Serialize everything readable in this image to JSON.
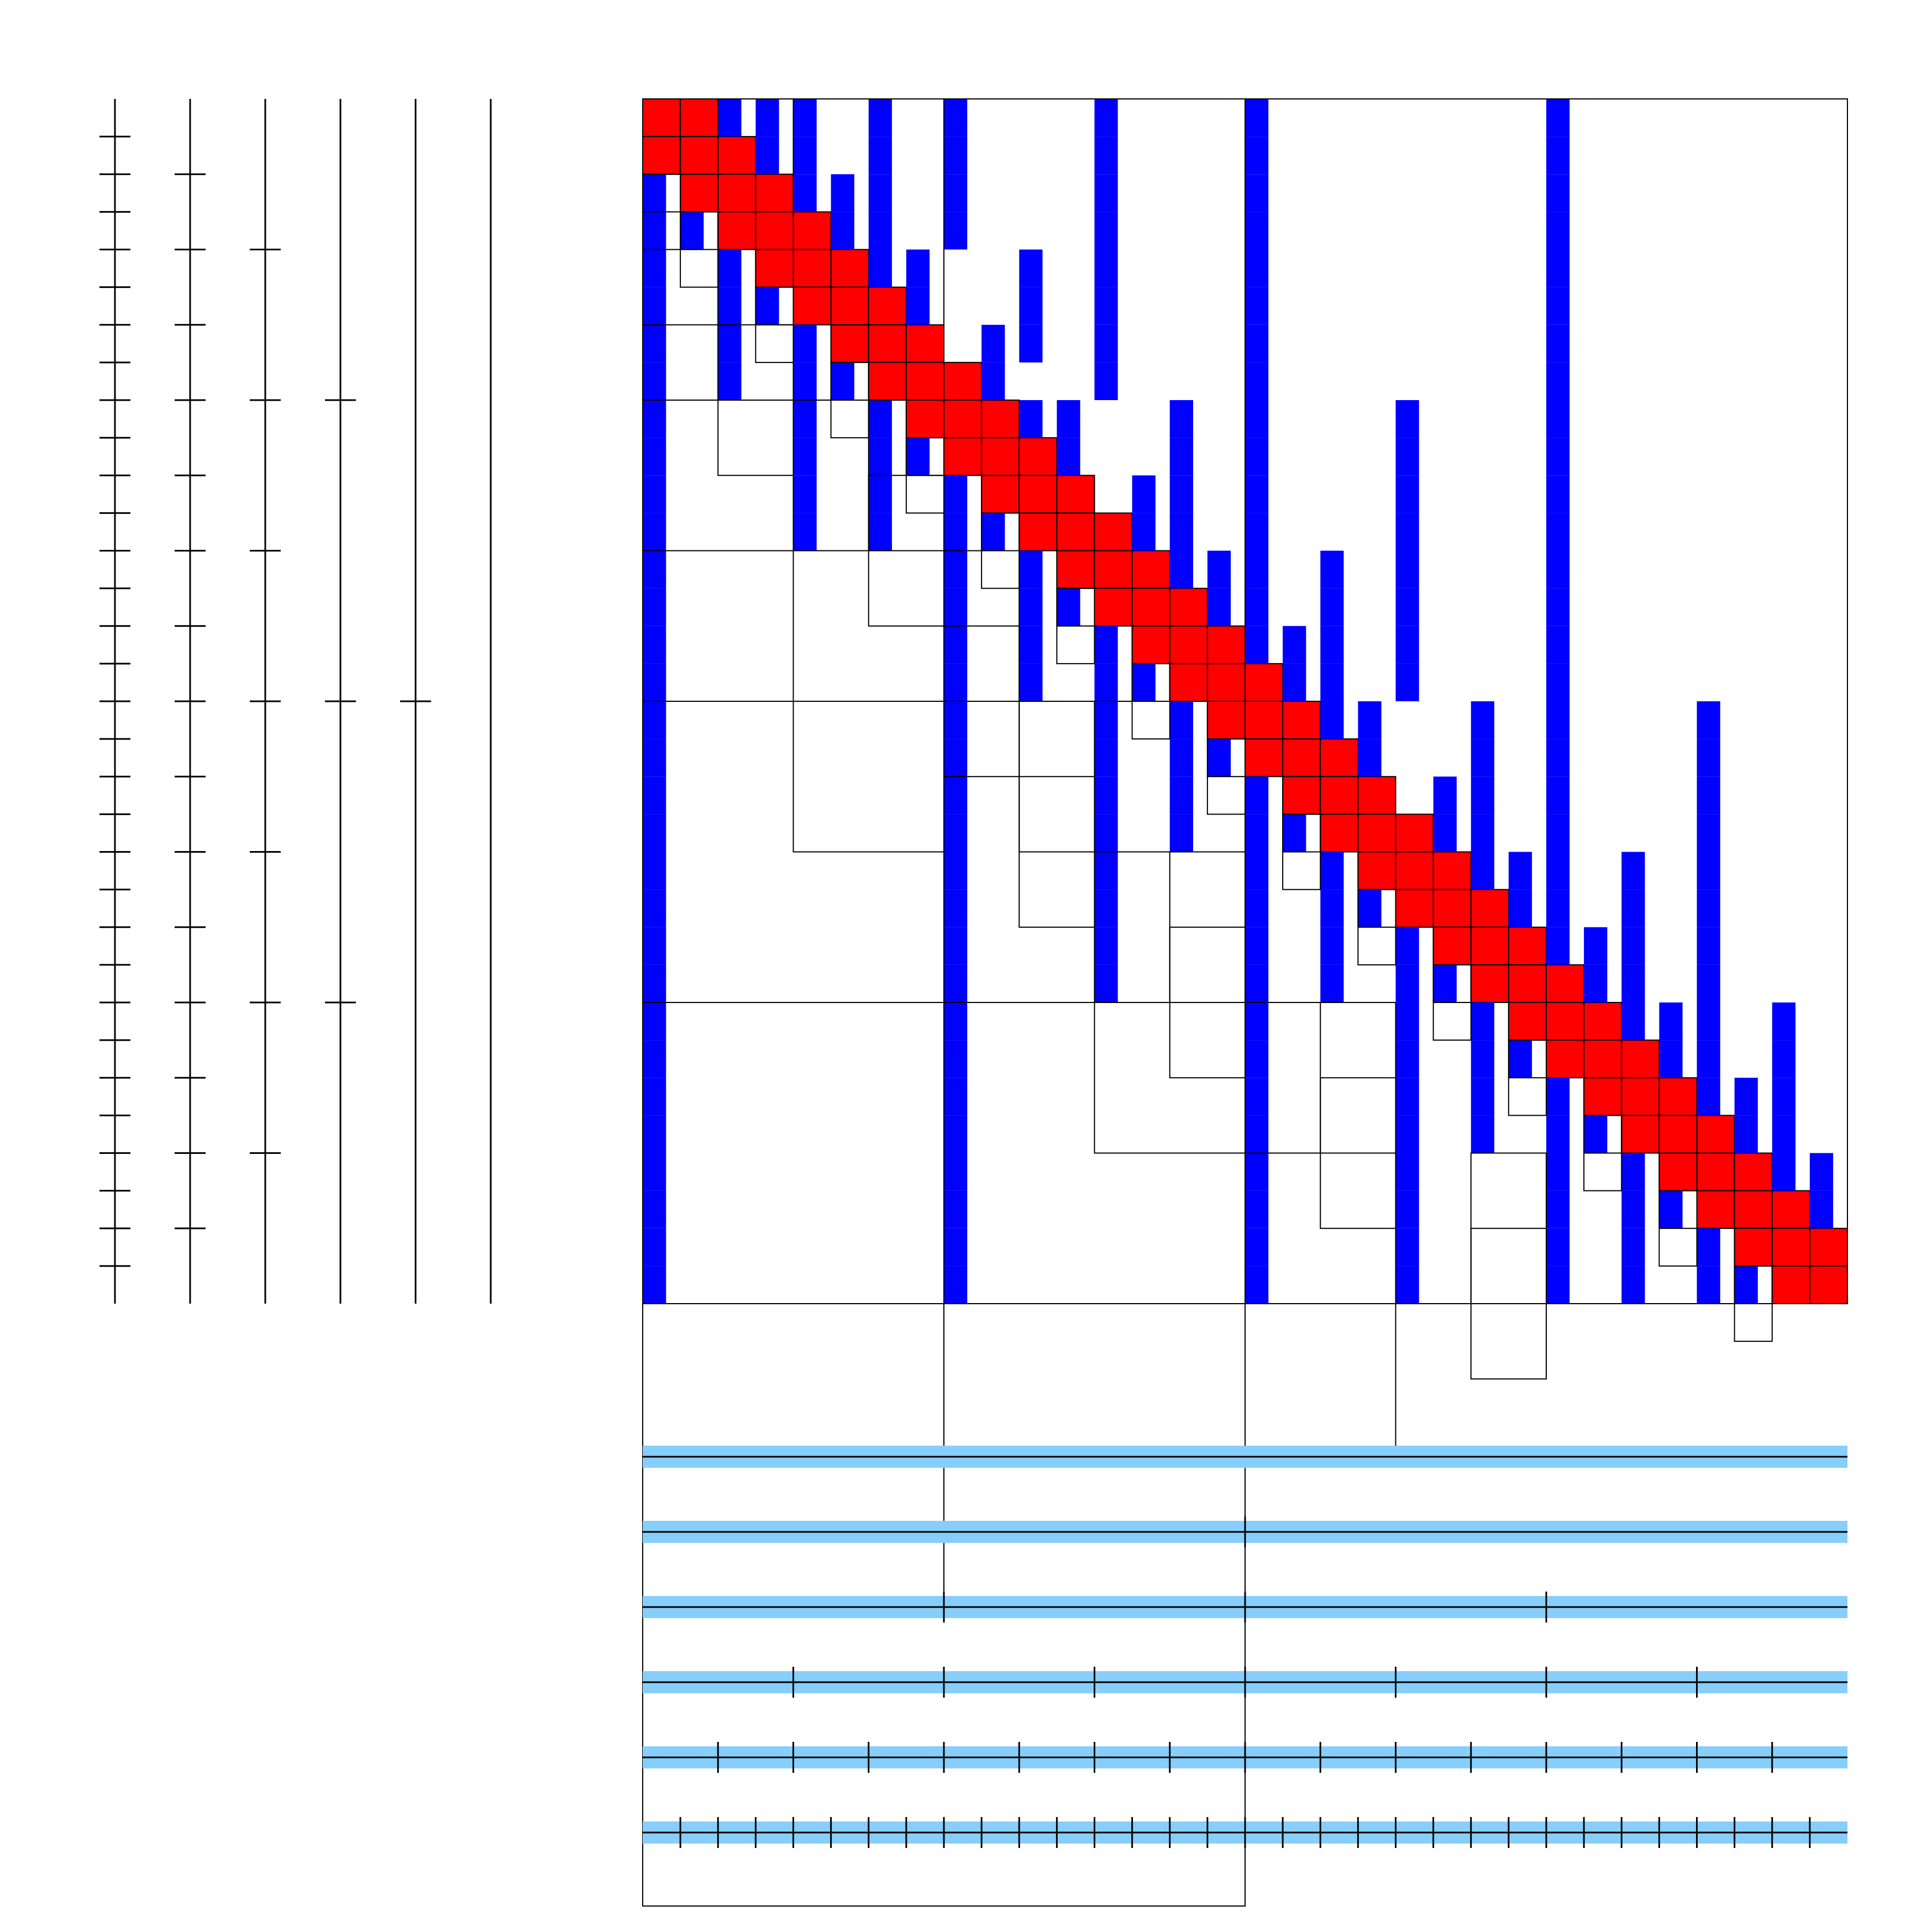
{
  "figure": {
    "type": "hierarchical-matrix-diagram",
    "n": 32,
    "levels": 6,
    "colors": {
      "near_field_block": "#ff0000",
      "low_rank_bar": "#0000ff",
      "grid_line": "#000000",
      "tree_bar": "#87cefa",
      "background": "#ffffff"
    },
    "near_field_bandwidth": 1,
    "low_rank_bars": [
      [
        0,
        2
      ],
      [
        0,
        3
      ],
      [
        0,
        4
      ],
      [
        0,
        6
      ],
      [
        0,
        8
      ],
      [
        0,
        12
      ],
      [
        0,
        16
      ],
      [
        0,
        24
      ],
      [
        1,
        3
      ],
      [
        1,
        4
      ],
      [
        1,
        6
      ],
      [
        1,
        8
      ],
      [
        1,
        12
      ],
      [
        1,
        16
      ],
      [
        1,
        24
      ],
      [
        2,
        0
      ],
      [
        2,
        4
      ],
      [
        2,
        5
      ],
      [
        2,
        6
      ],
      [
        2,
        8
      ],
      [
        2,
        12
      ],
      [
        2,
        16
      ],
      [
        2,
        24
      ],
      [
        3,
        0
      ],
      [
        3,
        1
      ],
      [
        3,
        5
      ],
      [
        3,
        6
      ],
      [
        3,
        8
      ],
      [
        3,
        12
      ],
      [
        3,
        16
      ],
      [
        3,
        24
      ],
      [
        4,
        0
      ],
      [
        4,
        2
      ],
      [
        4,
        6
      ],
      [
        4,
        7
      ],
      [
        4,
        10
      ],
      [
        4,
        12
      ],
      [
        4,
        16
      ],
      [
        4,
        24
      ],
      [
        5,
        0
      ],
      [
        5,
        2
      ],
      [
        5,
        3
      ],
      [
        5,
        7
      ],
      [
        5,
        10
      ],
      [
        5,
        12
      ],
      [
        5,
        16
      ],
      [
        5,
        24
      ],
      [
        6,
        0
      ],
      [
        6,
        2
      ],
      [
        6,
        4
      ],
      [
        6,
        9
      ],
      [
        6,
        10
      ],
      [
        6,
        12
      ],
      [
        6,
        16
      ],
      [
        6,
        24
      ],
      [
        7,
        0
      ],
      [
        7,
        2
      ],
      [
        7,
        4
      ],
      [
        7,
        5
      ],
      [
        7,
        9
      ],
      [
        7,
        12
      ],
      [
        7,
        16
      ],
      [
        7,
        24
      ],
      [
        8,
        0
      ],
      [
        8,
        4
      ],
      [
        8,
        6
      ],
      [
        8,
        10
      ],
      [
        8,
        11
      ],
      [
        8,
        14
      ],
      [
        8,
        16
      ],
      [
        8,
        20
      ],
      [
        8,
        24
      ],
      [
        9,
        0
      ],
      [
        9,
        4
      ],
      [
        9,
        6
      ],
      [
        9,
        7
      ],
      [
        9,
        11
      ],
      [
        9,
        14
      ],
      [
        9,
        16
      ],
      [
        9,
        20
      ],
      [
        9,
        24
      ],
      [
        10,
        0
      ],
      [
        10,
        4
      ],
      [
        10,
        6
      ],
      [
        10,
        8
      ],
      [
        10,
        13
      ],
      [
        10,
        14
      ],
      [
        10,
        16
      ],
      [
        10,
        20
      ],
      [
        10,
        24
      ],
      [
        11,
        0
      ],
      [
        11,
        4
      ],
      [
        11,
        6
      ],
      [
        11,
        8
      ],
      [
        11,
        9
      ],
      [
        11,
        13
      ],
      [
        11,
        14
      ],
      [
        11,
        16
      ],
      [
        11,
        20
      ],
      [
        11,
        24
      ],
      [
        12,
        0
      ],
      [
        12,
        8
      ],
      [
        12,
        10
      ],
      [
        12,
        14
      ],
      [
        12,
        15
      ],
      [
        12,
        16
      ],
      [
        12,
        18
      ],
      [
        12,
        20
      ],
      [
        12,
        24
      ],
      [
        13,
        0
      ],
      [
        13,
        8
      ],
      [
        13,
        10
      ],
      [
        13,
        11
      ],
      [
        13,
        15
      ],
      [
        13,
        16
      ],
      [
        13,
        18
      ],
      [
        13,
        20
      ],
      [
        13,
        24
      ],
      [
        14,
        0
      ],
      [
        14,
        8
      ],
      [
        14,
        10
      ],
      [
        14,
        12
      ],
      [
        14,
        16
      ],
      [
        14,
        17
      ],
      [
        14,
        18
      ],
      [
        14,
        20
      ],
      [
        14,
        24
      ],
      [
        15,
        0
      ],
      [
        15,
        8
      ],
      [
        15,
        10
      ],
      [
        15,
        12
      ],
      [
        15,
        13
      ],
      [
        15,
        17
      ],
      [
        15,
        18
      ],
      [
        15,
        20
      ],
      [
        15,
        24
      ],
      [
        16,
        0
      ],
      [
        16,
        8
      ],
      [
        16,
        12
      ],
      [
        16,
        14
      ],
      [
        16,
        18
      ],
      [
        16,
        19
      ],
      [
        16,
        22
      ],
      [
        16,
        24
      ],
      [
        16,
        28
      ],
      [
        17,
        0
      ],
      [
        17,
        8
      ],
      [
        17,
        12
      ],
      [
        17,
        14
      ],
      [
        17,
        15
      ],
      [
        17,
        19
      ],
      [
        17,
        22
      ],
      [
        17,
        24
      ],
      [
        17,
        28
      ],
      [
        18,
        0
      ],
      [
        18,
        8
      ],
      [
        18,
        12
      ],
      [
        18,
        14
      ],
      [
        18,
        16
      ],
      [
        18,
        21
      ],
      [
        18,
        22
      ],
      [
        18,
        24
      ],
      [
        18,
        28
      ],
      [
        19,
        0
      ],
      [
        19,
        8
      ],
      [
        19,
        12
      ],
      [
        19,
        14
      ],
      [
        19,
        16
      ],
      [
        19,
        17
      ],
      [
        19,
        21
      ],
      [
        19,
        22
      ],
      [
        19,
        24
      ],
      [
        19,
        28
      ],
      [
        20,
        0
      ],
      [
        20,
        8
      ],
      [
        20,
        12
      ],
      [
        20,
        16
      ],
      [
        20,
        18
      ],
      [
        20,
        22
      ],
      [
        20,
        23
      ],
      [
        20,
        24
      ],
      [
        20,
        26
      ],
      [
        20,
        28
      ],
      [
        21,
        0
      ],
      [
        21,
        8
      ],
      [
        21,
        12
      ],
      [
        21,
        16
      ],
      [
        21,
        18
      ],
      [
        21,
        19
      ],
      [
        21,
        23
      ],
      [
        21,
        24
      ],
      [
        21,
        26
      ],
      [
        21,
        28
      ],
      [
        22,
        0
      ],
      [
        22,
        8
      ],
      [
        22,
        12
      ],
      [
        22,
        16
      ],
      [
        22,
        18
      ],
      [
        22,
        20
      ],
      [
        22,
        24
      ],
      [
        22,
        25
      ],
      [
        22,
        26
      ],
      [
        22,
        28
      ],
      [
        23,
        0
      ],
      [
        23,
        8
      ],
      [
        23,
        12
      ],
      [
        23,
        16
      ],
      [
        23,
        18
      ],
      [
        23,
        20
      ],
      [
        23,
        21
      ],
      [
        23,
        25
      ],
      [
        23,
        26
      ],
      [
        23,
        28
      ],
      [
        24,
        0
      ],
      [
        24,
        8
      ],
      [
        24,
        16
      ],
      [
        24,
        20
      ],
      [
        24,
        22
      ],
      [
        24,
        26
      ],
      [
        24,
        27
      ],
      [
        24,
        28
      ],
      [
        24,
        30
      ],
      [
        25,
        0
      ],
      [
        25,
        8
      ],
      [
        25,
        16
      ],
      [
        25,
        20
      ],
      [
        25,
        22
      ],
      [
        25,
        23
      ],
      [
        25,
        27
      ],
      [
        25,
        28
      ],
      [
        25,
        30
      ],
      [
        26,
        0
      ],
      [
        26,
        8
      ],
      [
        26,
        16
      ],
      [
        26,
        20
      ],
      [
        26,
        22
      ],
      [
        26,
        24
      ],
      [
        26,
        28
      ],
      [
        26,
        29
      ],
      [
        26,
        30
      ],
      [
        27,
        0
      ],
      [
        27,
        8
      ],
      [
        27,
        16
      ],
      [
        27,
        20
      ],
      [
        27,
        22
      ],
      [
        27,
        24
      ],
      [
        27,
        25
      ],
      [
        27,
        29
      ],
      [
        27,
        30
      ],
      [
        28,
        0
      ],
      [
        28,
        8
      ],
      [
        28,
        16
      ],
      [
        28,
        20
      ],
      [
        28,
        24
      ],
      [
        28,
        26
      ],
      [
        28,
        30
      ],
      [
        28,
        31
      ],
      [
        29,
        0
      ],
      [
        29,
        8
      ],
      [
        29,
        16
      ],
      [
        29,
        20
      ],
      [
        29,
        24
      ],
      [
        29,
        26
      ],
      [
        29,
        27
      ],
      [
        29,
        31
      ],
      [
        30,
        0
      ],
      [
        30,
        8
      ],
      [
        30,
        16
      ],
      [
        30,
        20
      ],
      [
        30,
        24
      ],
      [
        30,
        26
      ],
      [
        30,
        28
      ],
      [
        31,
        0
      ],
      [
        31,
        8
      ],
      [
        31,
        16
      ],
      [
        31,
        20
      ],
      [
        31,
        24
      ],
      [
        31,
        26
      ],
      [
        31,
        28
      ],
      [
        31,
        29
      ]
    ],
    "grid_rects": [
      [
        0,
        0,
        16,
        32
      ],
      [
        16,
        0,
        16,
        32
      ],
      [
        0,
        0,
        8,
        16
      ],
      [
        8,
        0,
        8,
        16
      ],
      [
        16,
        8,
        8,
        16
      ],
      [
        24,
        8,
        8,
        16
      ],
      [
        0,
        0,
        4,
        8
      ],
      [
        4,
        0,
        4,
        8
      ],
      [
        8,
        4,
        4,
        8
      ],
      [
        12,
        4,
        4,
        8
      ],
      [
        16,
        12,
        4,
        8
      ],
      [
        20,
        12,
        4,
        8
      ],
      [
        24,
        16,
        4,
        8
      ],
      [
        28,
        16,
        4,
        8
      ],
      [
        0,
        0,
        2,
        4
      ],
      [
        2,
        0,
        2,
        4
      ],
      [
        4,
        2,
        2,
        4
      ],
      [
        6,
        2,
        2,
        4
      ],
      [
        8,
        6,
        2,
        4
      ],
      [
        10,
        6,
        2,
        4
      ],
      [
        12,
        8,
        2,
        4
      ],
      [
        14,
        8,
        2,
        4
      ],
      [
        16,
        10,
        2,
        4
      ],
      [
        18,
        10,
        2,
        4
      ],
      [
        20,
        14,
        2,
        4
      ],
      [
        22,
        14,
        2,
        4
      ],
      [
        24,
        18,
        2,
        4
      ],
      [
        26,
        18,
        2,
        4
      ],
      [
        28,
        22,
        2,
        4
      ],
      [
        30,
        22,
        2,
        4
      ],
      [
        0,
        0,
        1,
        2
      ],
      [
        1,
        0,
        1,
        2
      ],
      [
        2,
        1,
        1,
        2
      ],
      [
        3,
        1,
        1,
        2
      ],
      [
        4,
        3,
        1,
        2
      ],
      [
        5,
        3,
        1,
        2
      ],
      [
        6,
        5,
        1,
        2
      ],
      [
        7,
        5,
        1,
        2
      ],
      [
        8,
        7,
        1,
        2
      ],
      [
        9,
        7,
        1,
        2
      ],
      [
        10,
        9,
        1,
        2
      ],
      [
        11,
        9,
        1,
        2
      ],
      [
        12,
        11,
        1,
        2
      ],
      [
        13,
        11,
        1,
        2
      ],
      [
        14,
        13,
        1,
        2
      ],
      [
        15,
        13,
        1,
        2
      ],
      [
        16,
        15,
        1,
        2
      ],
      [
        17,
        15,
        1,
        2
      ],
      [
        18,
        17,
        1,
        2
      ],
      [
        19,
        17,
        1,
        2
      ],
      [
        20,
        19,
        1,
        2
      ],
      [
        21,
        19,
        1,
        2
      ],
      [
        22,
        21,
        1,
        2
      ],
      [
        23,
        21,
        1,
        2
      ],
      [
        24,
        23,
        1,
        2
      ],
      [
        25,
        23,
        1,
        2
      ],
      [
        26,
        25,
        1,
        2
      ],
      [
        27,
        25,
        1,
        2
      ],
      [
        28,
        27,
        1,
        2
      ],
      [
        29,
        27,
        1,
        2
      ],
      [
        30,
        29,
        1,
        2
      ],
      [
        31,
        29,
        1,
        2
      ]
    ]
  }
}
